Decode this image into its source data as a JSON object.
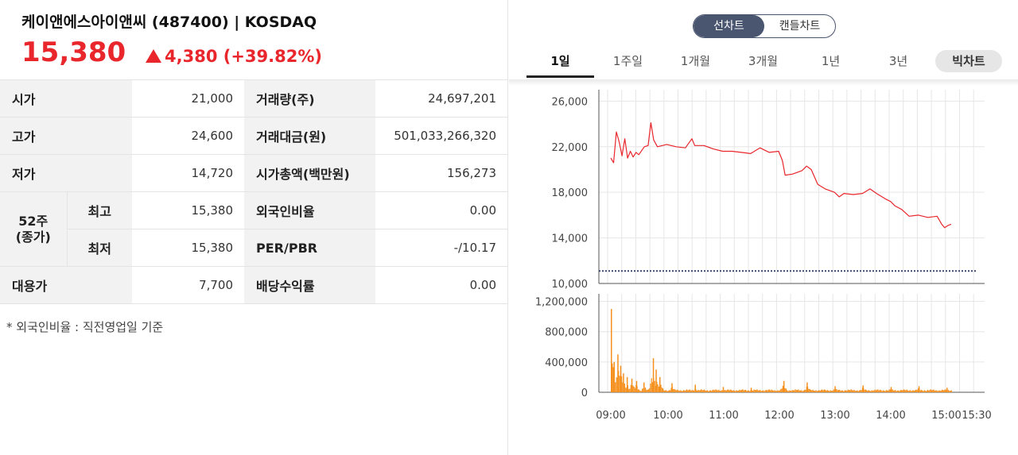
{
  "header": {
    "stock_name": "케이앤에스아이앤씨 (487400) | KOSDAQ",
    "price": "15,380",
    "change": "4,380 (+39.82%)",
    "change_color": "#e8262c"
  },
  "info_table": {
    "open_label": "시가",
    "open_value": "21,000",
    "high_label": "고가",
    "high_value": "24,600",
    "low_label": "저가",
    "low_value": "14,720",
    "week52_label_line1": "52주",
    "week52_label_line2": "(종가)",
    "week52_high_label": "최고",
    "week52_high_value": "15,380",
    "week52_low_label": "최저",
    "week52_low_value": "15,380",
    "substitute_label": "대용가",
    "substitute_value": "7,700",
    "volume_label": "거래량(주)",
    "volume_value": "24,697,201",
    "amount_label": "거래대금(원)",
    "amount_value": "501,033,266,320",
    "mcap_label": "시가총액(백만원)",
    "mcap_value": "156,273",
    "foreign_label": "외국인비율",
    "foreign_value": "0.00",
    "perpbr_label": "PER/PBR",
    "perpbr_value": "-/10.17",
    "dividend_label": "배당수익률",
    "dividend_value": "0.00",
    "footnote": "* 외국인비율 : 직전영업일 기준"
  },
  "chart_toggle": {
    "line_label": "선차트",
    "candle_label": "캔들차트",
    "selected": "선차트"
  },
  "period_tabs": [
    "1일",
    "1주일",
    "1개월",
    "3개월",
    "1년",
    "3년"
  ],
  "active_period": "1일",
  "big_chart_label": "빅차트",
  "chart_data": [
    {
      "type": "line",
      "x_labels": [
        "09:00",
        "10:00",
        "11:00",
        "12:00",
        "13:00",
        "14:00",
        "15:00",
        "15:30"
      ],
      "y_ticks": [
        "10,000",
        "14,000",
        "18,000",
        "22,000",
        "26,000"
      ],
      "ylim": [
        10000,
        27000
      ],
      "reference_line": 11100,
      "series": [
        {
          "color": "#e8262c",
          "points": [
            [
              "09:00",
              21000
            ],
            [
              "09:03",
              20600
            ],
            [
              "09:06",
              23300
            ],
            [
              "09:09",
              22400
            ],
            [
              "09:12",
              21200
            ],
            [
              "09:15",
              22700
            ],
            [
              "09:18",
              21000
            ],
            [
              "09:21",
              21600
            ],
            [
              "09:24",
              21100
            ],
            [
              "09:27",
              21500
            ],
            [
              "09:30",
              21300
            ],
            [
              "09:36",
              22000
            ],
            [
              "09:40",
              22100
            ],
            [
              "09:43",
              24100
            ],
            [
              "09:46",
              22600
            ],
            [
              "09:50",
              22000
            ],
            [
              "10:00",
              22200
            ],
            [
              "10:10",
              22000
            ],
            [
              "10:20",
              21900
            ],
            [
              "10:27",
              22700
            ],
            [
              "10:30",
              22100
            ],
            [
              "10:40",
              22100
            ],
            [
              "10:50",
              21800
            ],
            [
              "11:00",
              21600
            ],
            [
              "11:10",
              21600
            ],
            [
              "11:20",
              21500
            ],
            [
              "11:30",
              21400
            ],
            [
              "11:40",
              21900
            ],
            [
              "11:50",
              21500
            ],
            [
              "12:00",
              21600
            ],
            [
              "12:04",
              20800
            ],
            [
              "12:07",
              19500
            ],
            [
              "12:15",
              19600
            ],
            [
              "12:25",
              19900
            ],
            [
              "12:30",
              20300
            ],
            [
              "12:35",
              20000
            ],
            [
              "12:42",
              18700
            ],
            [
              "12:50",
              18300
            ],
            [
              "13:00",
              18000
            ],
            [
              "13:05",
              17600
            ],
            [
              "13:10",
              17900
            ],
            [
              "13:20",
              17800
            ],
            [
              "13:30",
              17900
            ],
            [
              "13:38",
              18300
            ],
            [
              "13:45",
              17900
            ],
            [
              "13:55",
              17400
            ],
            [
              "14:00",
              17200
            ],
            [
              "14:05",
              16800
            ],
            [
              "14:12",
              16500
            ],
            [
              "14:20",
              15900
            ],
            [
              "14:30",
              16000
            ],
            [
              "14:40",
              15800
            ],
            [
              "14:50",
              15900
            ],
            [
              "14:55",
              15200
            ],
            [
              "14:58",
              14900
            ],
            [
              "15:02",
              15100
            ],
            [
              "15:05",
              15200
            ]
          ]
        }
      ]
    },
    {
      "type": "bar",
      "x_labels": [
        "09:00",
        "10:00",
        "11:00",
        "12:00",
        "13:00",
        "14:00",
        "15:00",
        "15:30"
      ],
      "y_ticks": [
        "0",
        "400,000",
        "800,000",
        "1,200,000"
      ],
      "ylim": [
        0,
        1300000
      ],
      "color": "#f5901e",
      "spikes": [
        [
          "09:00",
          1100000
        ],
        [
          "09:03",
          400000
        ],
        [
          "09:07",
          500000
        ],
        [
          "09:10",
          350000
        ],
        [
          "09:13",
          250000
        ],
        [
          "09:17",
          200000
        ],
        [
          "09:22",
          180000
        ],
        [
          "09:27",
          150000
        ],
        [
          "09:35",
          130000
        ],
        [
          "09:45",
          450000
        ],
        [
          "09:48",
          300000
        ],
        [
          "09:52",
          200000
        ],
        [
          "10:05",
          120000
        ],
        [
          "10:30",
          100000
        ],
        [
          "11:00",
          70000
        ],
        [
          "11:30",
          60000
        ],
        [
          "12:05",
          150000
        ],
        [
          "12:30",
          130000
        ],
        [
          "13:00",
          80000
        ],
        [
          "13:30",
          90000
        ],
        [
          "14:00",
          70000
        ],
        [
          "14:30",
          80000
        ],
        [
          "15:00",
          60000
        ]
      ]
    }
  ]
}
